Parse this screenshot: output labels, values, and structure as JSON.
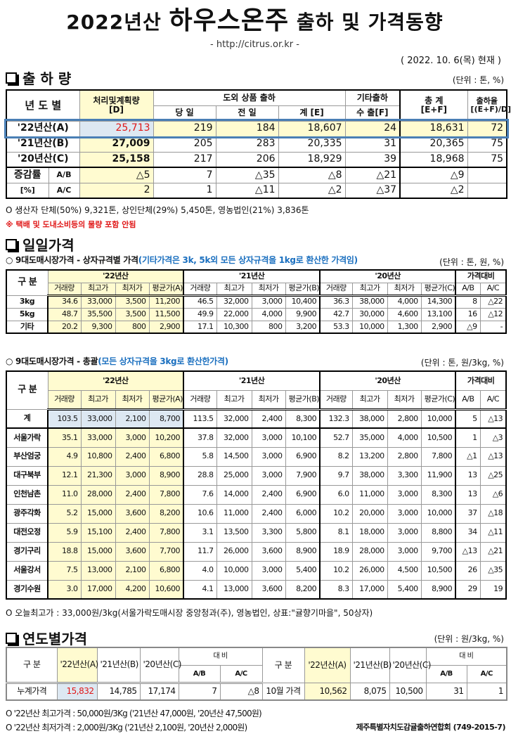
{
  "header": {
    "title_pre": "2022년산",
    "title_big": "하우스온주",
    "title_post": "출하 및 가격동향",
    "url": "- http://citrus.or.kr -",
    "date": "( 2022. 10. 6(목) 현재 )"
  },
  "shipping": {
    "heading": "출 하 량",
    "unit": "(단위 : 톤, %)",
    "head1": [
      "년 도 별",
      "처리및계획량\n[D]",
      "도외 상품 출하",
      "기타출하",
      "총   계\n[E+F]",
      "출하율\n[(E+F)/D]"
    ],
    "head2": [
      "당 일",
      "전 일",
      "계 [E]",
      "수 출[F]"
    ],
    "rows": [
      [
        "'22년산(A)",
        "25,713",
        "219",
        "184",
        "18,607",
        "24",
        "18,631",
        "72"
      ],
      [
        "'21년산(B)",
        "27,009",
        "205",
        "283",
        "20,335",
        "31",
        "20,365",
        "75"
      ],
      [
        "'20년산(C)",
        "25,158",
        "217",
        "206",
        "18,929",
        "39",
        "18,968",
        "75"
      ]
    ],
    "rate_label": "증감률",
    "rate_unit": "[%]",
    "rates": [
      [
        "A/B",
        "△5",
        "7",
        "△35",
        "△8",
        "△21",
        "△9",
        ""
      ],
      [
        "A/C",
        "2",
        "1",
        "△11",
        "△2",
        "△37",
        "△2",
        ""
      ]
    ],
    "note": "O 생산자 단체(50%) 9,321톤,    상인단체(29%) 5,450톤,    영농법인(21%)  3,836톤",
    "warning": "※ 택배 및 도내소비등의 물량 포함 안됨"
  },
  "daily": {
    "heading": "일일가격",
    "sub1": "○ 9대도매시장가격 - 상자규격별 가격",
    "sub1_note": "(기타가격은 3k, 5k외 모든 상자규격을 1kg로 환산한 가격임)",
    "unit1": "(단위 : 톤, 원, %)",
    "groups": [
      "구 분",
      "'22년산",
      "'21년산",
      "'20년산",
      "가격대비"
    ],
    "cols": [
      "거래량",
      "최고가",
      "최저가",
      "평균가(A)",
      "거래량",
      "최고가",
      "최저가",
      "평균가(B)",
      "거래량",
      "최고가",
      "최저가",
      "평균가(C)",
      "A/B",
      "A/C"
    ],
    "rows1": [
      [
        "3kg",
        "34.6",
        "33,000",
        "3,500",
        "11,200",
        "46.5",
        "32,000",
        "3,000",
        "10,400",
        "36.3",
        "38,000",
        "4,000",
        "14,300",
        "8",
        "△22"
      ],
      [
        "5kg",
        "48.7",
        "35,500",
        "3,500",
        "11,500",
        "49.9",
        "22,000",
        "4,000",
        "9,900",
        "42.7",
        "30,000",
        "4,600",
        "13,100",
        "16",
        "△12"
      ],
      [
        "기타",
        "20.2",
        "9,300",
        "800",
        "2,900",
        "17.1",
        "10,300",
        "800",
        "3,200",
        "53.3",
        "10,000",
        "1,300",
        "2,900",
        "△9",
        "-"
      ]
    ],
    "sub2": "○ 9대도매시장가격 - 총괄",
    "sub2_note": "(모든 상자규격을 3kg로 환산한가격)",
    "unit2": "(단위 : 톤, 원/3kg, %)",
    "rows2": [
      [
        "계",
        "103.5",
        "33,000",
        "2,100",
        "8,700",
        "113.5",
        "32,000",
        "2,400",
        "8,300",
        "132.3",
        "38,000",
        "2,800",
        "10,000",
        "5",
        "△13"
      ],
      [
        "서울가락",
        "35.1",
        "33,000",
        "3,000",
        "10,200",
        "37.8",
        "32,000",
        "3,000",
        "10,100",
        "52.7",
        "35,000",
        "4,000",
        "10,500",
        "1",
        "△3"
      ],
      [
        "부산엄궁",
        "4.9",
        "10,800",
        "2,400",
        "6,800",
        "5.8",
        "14,500",
        "3,000",
        "6,900",
        "8.2",
        "13,200",
        "2,800",
        "7,800",
        "△1",
        "△13"
      ],
      [
        "대구북부",
        "12.1",
        "21,300",
        "3,000",
        "8,900",
        "28.8",
        "25,000",
        "3,000",
        "7,900",
        "9.7",
        "38,000",
        "3,300",
        "11,900",
        "13",
        "△25"
      ],
      [
        "인천남촌",
        "11.0",
        "28,000",
        "2,400",
        "7,800",
        "7.6",
        "14,000",
        "2,400",
        "6,900",
        "6.0",
        "11,000",
        "3,000",
        "8,300",
        "13",
        "△6"
      ],
      [
        "광주각화",
        "5.2",
        "15,000",
        "3,600",
        "8,200",
        "10.6",
        "11,000",
        "2,400",
        "6,000",
        "10.2",
        "20,000",
        "3,000",
        "10,000",
        "37",
        "△18"
      ],
      [
        "대전오정",
        "5.9",
        "15,100",
        "2,400",
        "7,800",
        "3.1",
        "13,500",
        "3,300",
        "5,800",
        "8.1",
        "18,000",
        "3,000",
        "8,800",
        "34",
        "△11"
      ],
      [
        "경기구리",
        "18.8",
        "15,000",
        "3,600",
        "7,700",
        "11.7",
        "26,000",
        "3,600",
        "8,900",
        "18.9",
        "28,000",
        "3,000",
        "9,700",
        "△13",
        "△21"
      ],
      [
        "서울강서",
        "7.5",
        "13,000",
        "2,100",
        "6,800",
        "4.0",
        "10,000",
        "3,000",
        "5,400",
        "10.2",
        "26,000",
        "4,500",
        "10,500",
        "26",
        "△35"
      ],
      [
        "경기수원",
        "3.0",
        "17,000",
        "4,200",
        "10,600",
        "4.1",
        "13,000",
        "3,600",
        "8,200",
        "8.3",
        "17,000",
        "5,400",
        "8,900",
        "29",
        "19"
      ]
    ],
    "note": "O 오늘최고가 : 33,000원/3kg(서울가락도매시장   중앙청과(주),   영농법인,   상표:\"귤향기마을\",   50상자)"
  },
  "yearly": {
    "heading": "연도별가격",
    "unit": "(단위 : 원/3kg, %)",
    "head": [
      "구  분",
      "'22년산(A)",
      "'21년산(B)",
      "'20년산(C)",
      "대      비",
      "A/B",
      "A/C"
    ],
    "left": [
      "누계가격",
      "15,832",
      "14,785",
      "17,174",
      "7",
      "△8"
    ],
    "right": [
      "10월 가격",
      "10,562",
      "8,075",
      "10,500",
      "31",
      "1"
    ],
    "notes": [
      "O '22년산 최고가격 : 50,000원/3Kg ('21년산 47,000원, '20년산 47,500원)",
      "O '22년산 최저가격 :   2,000원/3Kg ('21년산   2,100원, '20년산  2,000원)"
    ],
    "org": "제주특별자치도감귤출하연합회 (749-2015-7)"
  }
}
